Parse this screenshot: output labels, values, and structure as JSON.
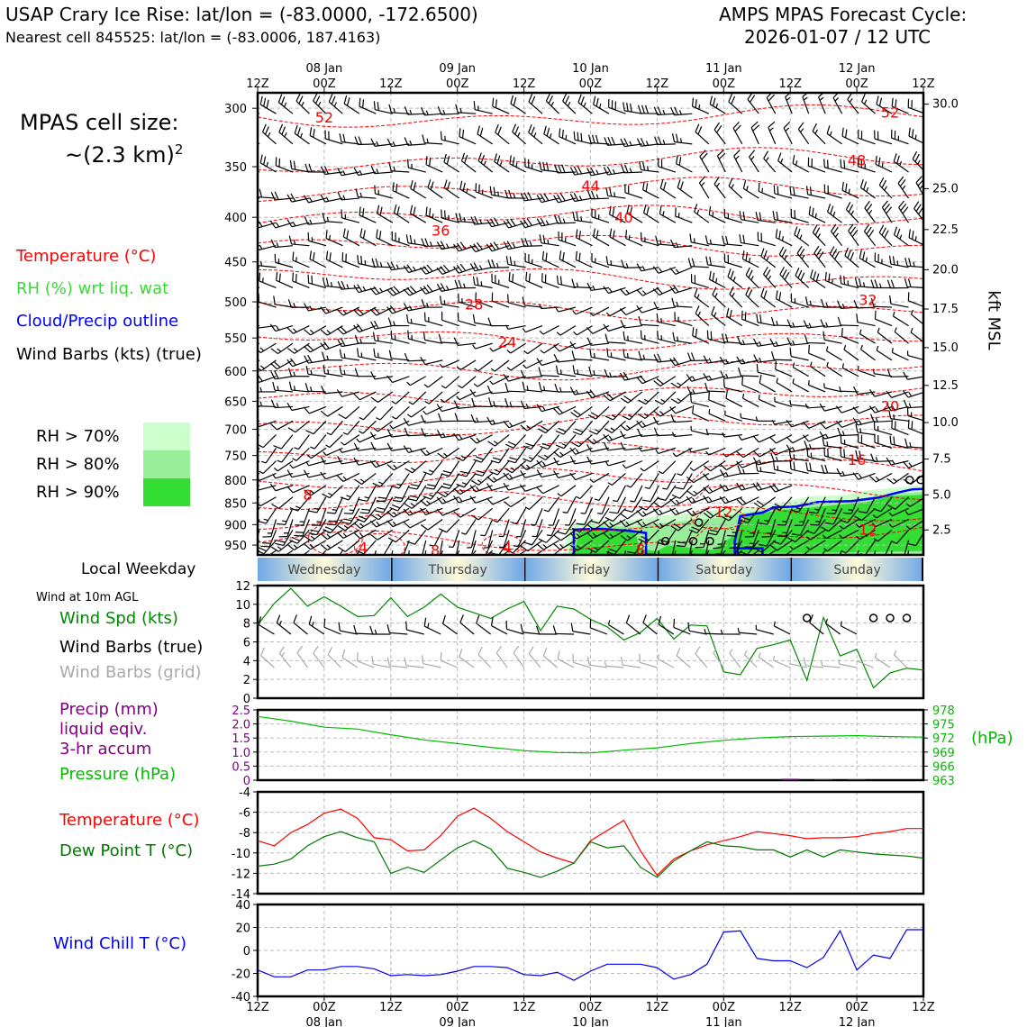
{
  "header": {
    "title_left": "USAP Crary Ice Rise: lat/lon = (-83.0000, -172.6500)",
    "subtitle_left": "Nearest cell 845525: lat/lon = (-83.0006, 187.4163)",
    "title_right_1": "AMPS MPAS Forecast Cycle:",
    "title_right_2": "2026-01-07 / 12 UTC"
  },
  "sidebar": {
    "cell_size_1": "MPAS cell size:",
    "cell_size_2": "~(2.3 km)",
    "cell_size_exp": "2",
    "legend_temperature": "Temperature (°C)",
    "legend_rh": "RH (%) wrt liq. wat",
    "legend_cloud": "Cloud/Precip outline",
    "legend_wind": "Wind Barbs (kts) (true)",
    "rh_swatches": [
      {
        "label": "RH > 70%",
        "color": "#ccffcc"
      },
      {
        "label": "RH > 80%",
        "color": "#99ee99"
      },
      {
        "label": "RH > 90%",
        "color": "#33dd33"
      }
    ],
    "local_weekday": "Local Weekday",
    "wind_10m": "Wind at 10m AGL",
    "panel_wind_1": "Wind Spd (kts)",
    "panel_wind_2": "Wind Barbs (true)",
    "panel_wind_3": "Wind Barbs (grid)",
    "panel_precip_1": "Precip (mm)",
    "panel_precip_2": "liquid eqiv.",
    "panel_precip_3": "3-hr accum",
    "panel_pressure": "Pressure (hPa)",
    "panel_temp": "Temperature (°C)",
    "panel_dew": "Dew Point T (°C)",
    "panel_chill": "Wind Chill T (°C)"
  },
  "colors": {
    "temperature": "#ff0000",
    "rh": "#33dd33",
    "cloud": "#0000ff",
    "wind_speed": "#008800",
    "grid_barbs": "#aaaaaa",
    "precip": "#800080",
    "pressure": "#00bb00",
    "dew": "#007700",
    "chill": "#0000ee"
  },
  "chart_data": [
    {
      "type": "heatmap",
      "name": "cross-section",
      "x_ticks": [
        "12Z",
        "00Z",
        "12Z",
        "00Z",
        "12Z",
        "00Z",
        "12Z",
        "00Z",
        "12Z",
        "00Z",
        "12Z"
      ],
      "x_day_labels": [
        "08 Jan",
        "09 Jan",
        "10 Jan",
        "11 Jan",
        "12 Jan"
      ],
      "y_ticks_hpa": [
        300,
        350,
        400,
        450,
        500,
        550,
        600,
        650,
        700,
        750,
        800,
        850,
        900,
        950
      ],
      "y_right_label": "kft MSL",
      "y_right_ticks": [
        "30.0",
        "25.0",
        "22.5",
        "20.0",
        "17.5",
        "15.0",
        "12.5",
        "10.0",
        "7.5",
        "5.0",
        "2.5"
      ],
      "y_right_positions_kft": [
        30.0,
        25.0,
        22.5,
        20.0,
        17.5,
        15.0,
        12.5,
        10.0,
        7.5,
        5.0,
        2.5
      ],
      "isotherm_labels": [
        {
          "text": "52",
          "t": 12,
          "p": 307
        },
        {
          "text": "52",
          "t": 114,
          "p": 303
        },
        {
          "text": "48",
          "t": 108,
          "p": 344
        },
        {
          "text": "44",
          "t": 60,
          "p": 368
        },
        {
          "text": "40",
          "t": 66,
          "p": 400
        },
        {
          "text": "36",
          "t": 33,
          "p": 414
        },
        {
          "text": "32",
          "t": 110,
          "p": 497
        },
        {
          "text": "28",
          "t": 39,
          "p": 503
        },
        {
          "text": "24",
          "t": 45,
          "p": 556
        },
        {
          "text": "20",
          "t": 114,
          "p": 658
        },
        {
          "text": "16",
          "t": 108,
          "p": 758
        },
        {
          "text": "12",
          "t": 84,
          "p": 870
        },
        {
          "text": "12",
          "t": 110,
          "p": 911
        },
        {
          "text": "8",
          "t": 9,
          "p": 831
        },
        {
          "text": "4",
          "t": 19,
          "p": 956
        },
        {
          "text": "4",
          "t": 45,
          "p": 956
        },
        {
          "text": "8",
          "t": 32,
          "p": 962
        },
        {
          "text": "8",
          "t": 69,
          "p": 960
        }
      ]
    },
    {
      "type": "line",
      "name": "wind-speed",
      "ylim": [
        0,
        12
      ],
      "y_ticks": [
        0,
        2,
        4,
        6,
        8,
        10,
        12
      ],
      "series": [
        {
          "name": "Wind Spd (kts)",
          "x_hours": [
            0,
            3,
            6,
            9,
            12,
            15,
            18,
            21,
            24,
            27,
            30,
            33,
            36,
            39,
            42,
            45,
            48,
            51,
            54,
            57,
            60,
            63,
            66,
            69,
            72,
            75,
            78,
            81,
            84,
            87,
            90,
            93,
            96,
            99,
            102,
            105,
            108,
            111,
            114,
            117,
            120
          ],
          "values": [
            7.8,
            10.1,
            11.7,
            9.8,
            10.8,
            9.8,
            8.7,
            8.8,
            10.7,
            8.7,
            9.7,
            11.1,
            9.7,
            9.1,
            8.5,
            9.5,
            10.3,
            7.2,
            9.8,
            9.5,
            8.4,
            7.6,
            6.2,
            7.0,
            8.5,
            6.3,
            7.8,
            7.7,
            2.8,
            2.5,
            5.3,
            5.7,
            6.2,
            1.9,
            8.6,
            4.5,
            5.2,
            1.1,
            2.7,
            3.2,
            3.0
          ]
        }
      ]
    },
    {
      "type": "line",
      "name": "precip-pressure",
      "ylim": [
        0,
        2.5
      ],
      "y_ticks": [
        "0",
        "0.5",
        "1.0",
        "1.5",
        "2.0",
        "2.5"
      ],
      "y2lim": [
        963,
        978
      ],
      "y2_ticks": [
        "963",
        "966",
        "969",
        "972",
        "975",
        "978"
      ],
      "series": [
        {
          "name": "Pressure (hPa)",
          "x_hours": [
            0,
            6,
            12,
            18,
            24,
            30,
            36,
            42,
            48,
            54,
            60,
            66,
            72,
            78,
            84,
            90,
            96,
            102,
            108,
            114,
            120
          ],
          "values": [
            976.6,
            975.6,
            974.3,
            973.9,
            972.7,
            971.6,
            970.8,
            970.0,
            969.3,
            968.9,
            968.8,
            969.4,
            969.9,
            970.8,
            971.5,
            972.0,
            972.3,
            972.4,
            972.5,
            972.3,
            972.2
          ]
        }
      ],
      "precip_bars": [
        {
          "x_hours": 96,
          "value": 0.05
        },
        {
          "x_hours": 102,
          "value": 0.03
        },
        {
          "x_hours": 108,
          "value": 0.02
        }
      ]
    },
    {
      "type": "line",
      "name": "temperature-dewpoint",
      "ylim": [
        -14,
        -4
      ],
      "y_ticks": [
        -14,
        -12,
        -10,
        -8,
        -6,
        -4
      ],
      "series": [
        {
          "name": "Temperature (°C)",
          "x_hours": [
            0,
            3,
            6,
            9,
            12,
            15,
            18,
            21,
            24,
            27,
            30,
            33,
            36,
            39,
            42,
            45,
            48,
            51,
            54,
            57,
            60,
            63,
            66,
            69,
            72,
            75,
            78,
            81,
            84,
            87,
            90,
            93,
            96,
            99,
            102,
            105,
            108,
            111,
            114,
            117,
            120
          ],
          "values": [
            -8.8,
            -9.3,
            -8.0,
            -7.2,
            -6.1,
            -5.7,
            -6.6,
            -8.5,
            -8.7,
            -9.8,
            -9.7,
            -8.3,
            -6.4,
            -5.6,
            -6.6,
            -7.9,
            -8.9,
            -9.9,
            -10.5,
            -11.0,
            -8.8,
            -7.8,
            -6.8,
            -9.8,
            -12.2,
            -10.6,
            -9.8,
            -9.2,
            -8.8,
            -8.4,
            -7.9,
            -8.1,
            -8.3,
            -8.6,
            -8.5,
            -8.5,
            -8.4,
            -8.1,
            -7.9,
            -7.6,
            -7.6
          ]
        },
        {
          "name": "Dew Point T (°C)",
          "x_hours": [
            0,
            3,
            6,
            9,
            12,
            15,
            18,
            21,
            24,
            27,
            30,
            33,
            36,
            39,
            42,
            45,
            48,
            51,
            54,
            57,
            60,
            63,
            66,
            69,
            72,
            75,
            78,
            81,
            84,
            87,
            90,
            93,
            96,
            99,
            102,
            105,
            108,
            111,
            114,
            117,
            120
          ],
          "values": [
            -11.3,
            -11.1,
            -10.6,
            -9.3,
            -8.4,
            -7.9,
            -8.5,
            -8.9,
            -12.0,
            -11.4,
            -11.9,
            -10.7,
            -9.5,
            -8.8,
            -9.6,
            -11.5,
            -11.9,
            -12.4,
            -11.8,
            -11.0,
            -8.9,
            -9.5,
            -9.3,
            -11.4,
            -12.4,
            -10.8,
            -9.8,
            -8.9,
            -9.3,
            -9.4,
            -9.7,
            -9.7,
            -10.4,
            -9.7,
            -10.4,
            -9.7,
            -9.9,
            -10.1,
            -10.2,
            -10.3,
            -10.5
          ]
        }
      ]
    },
    {
      "type": "line",
      "name": "wind-chill",
      "ylim": [
        -40,
        40
      ],
      "y_ticks": [
        -40,
        -20,
        0,
        20,
        40
      ],
      "series": [
        {
          "name": "Wind Chill T (°C)",
          "x_hours": [
            0,
            3,
            6,
            9,
            12,
            15,
            18,
            21,
            24,
            27,
            30,
            33,
            36,
            39,
            42,
            45,
            48,
            51,
            54,
            57,
            60,
            63,
            66,
            69,
            72,
            75,
            78,
            81,
            84,
            87,
            90,
            93,
            96,
            99,
            102,
            105,
            108,
            111,
            114,
            117,
            120
          ],
          "values": [
            -17,
            -23,
            -23,
            -17,
            -17,
            -14,
            -14,
            -16,
            -22,
            -21,
            -22,
            -21,
            -18,
            -14,
            -14,
            -15,
            -21,
            -22,
            -19,
            -26,
            -18,
            -12,
            -12,
            -12,
            -15,
            -25,
            -21,
            -12,
            16,
            17,
            -7,
            -9,
            -9,
            -15,
            -6,
            17,
            -17,
            -4,
            -7,
            18,
            18
          ]
        }
      ]
    }
  ],
  "weekday_bar": [
    "Wednesday",
    "Thursday",
    "Friday",
    "Saturday",
    "Sunday"
  ],
  "right_axis_unit": "(hPa)"
}
